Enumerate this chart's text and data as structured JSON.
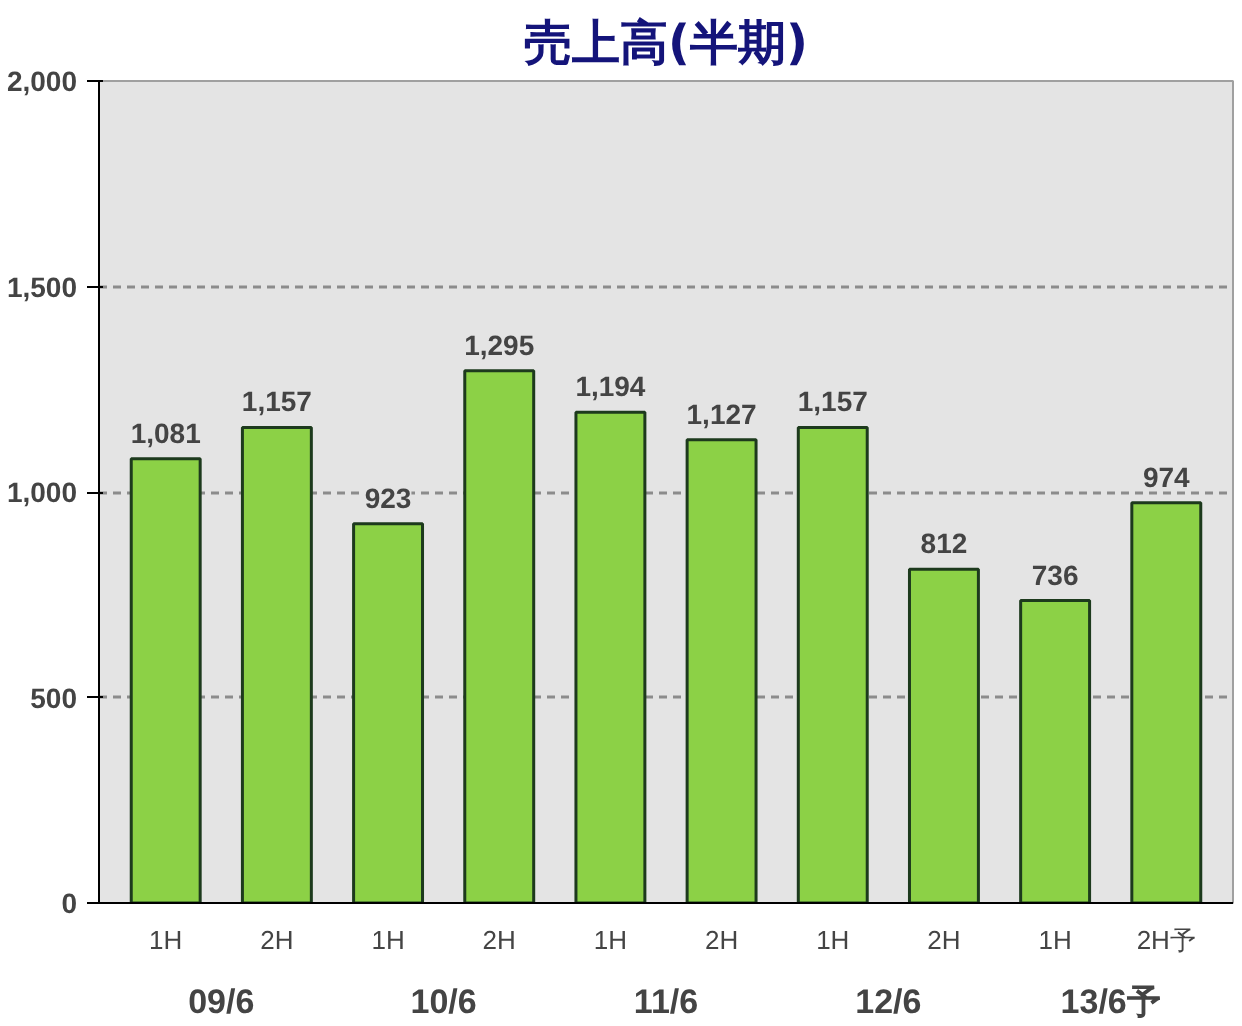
{
  "chart_data": {
    "type": "bar",
    "title": "売上高(半期)",
    "categories": [
      "1H",
      "2H",
      "1H",
      "2H",
      "1H",
      "2H",
      "1H",
      "2H",
      "1H",
      "2H予"
    ],
    "values": [
      1081,
      1157,
      923,
      1295,
      1194,
      1127,
      1157,
      812,
      736,
      974
    ],
    "color": "#8cd146",
    "ylim": [
      0,
      2000
    ],
    "yticks": [
      0,
      {
        "value": 500,
        "label": "500"
      },
      {
        "value": 1000,
        "label": "1,000"
      },
      {
        "value": 1500,
        "label": "1,500"
      },
      {
        "value": 2000,
        "label": "2,000"
      }
    ],
    "grid": "y",
    "value_labels": [
      "1,081",
      "1,157",
      "923",
      "1,295",
      "1,194",
      "1,127",
      "1,157",
      "812",
      "736",
      "974"
    ],
    "annotations": [
      "09/6",
      "10/6",
      "11/6",
      "12/6",
      "13/6予"
    ]
  }
}
